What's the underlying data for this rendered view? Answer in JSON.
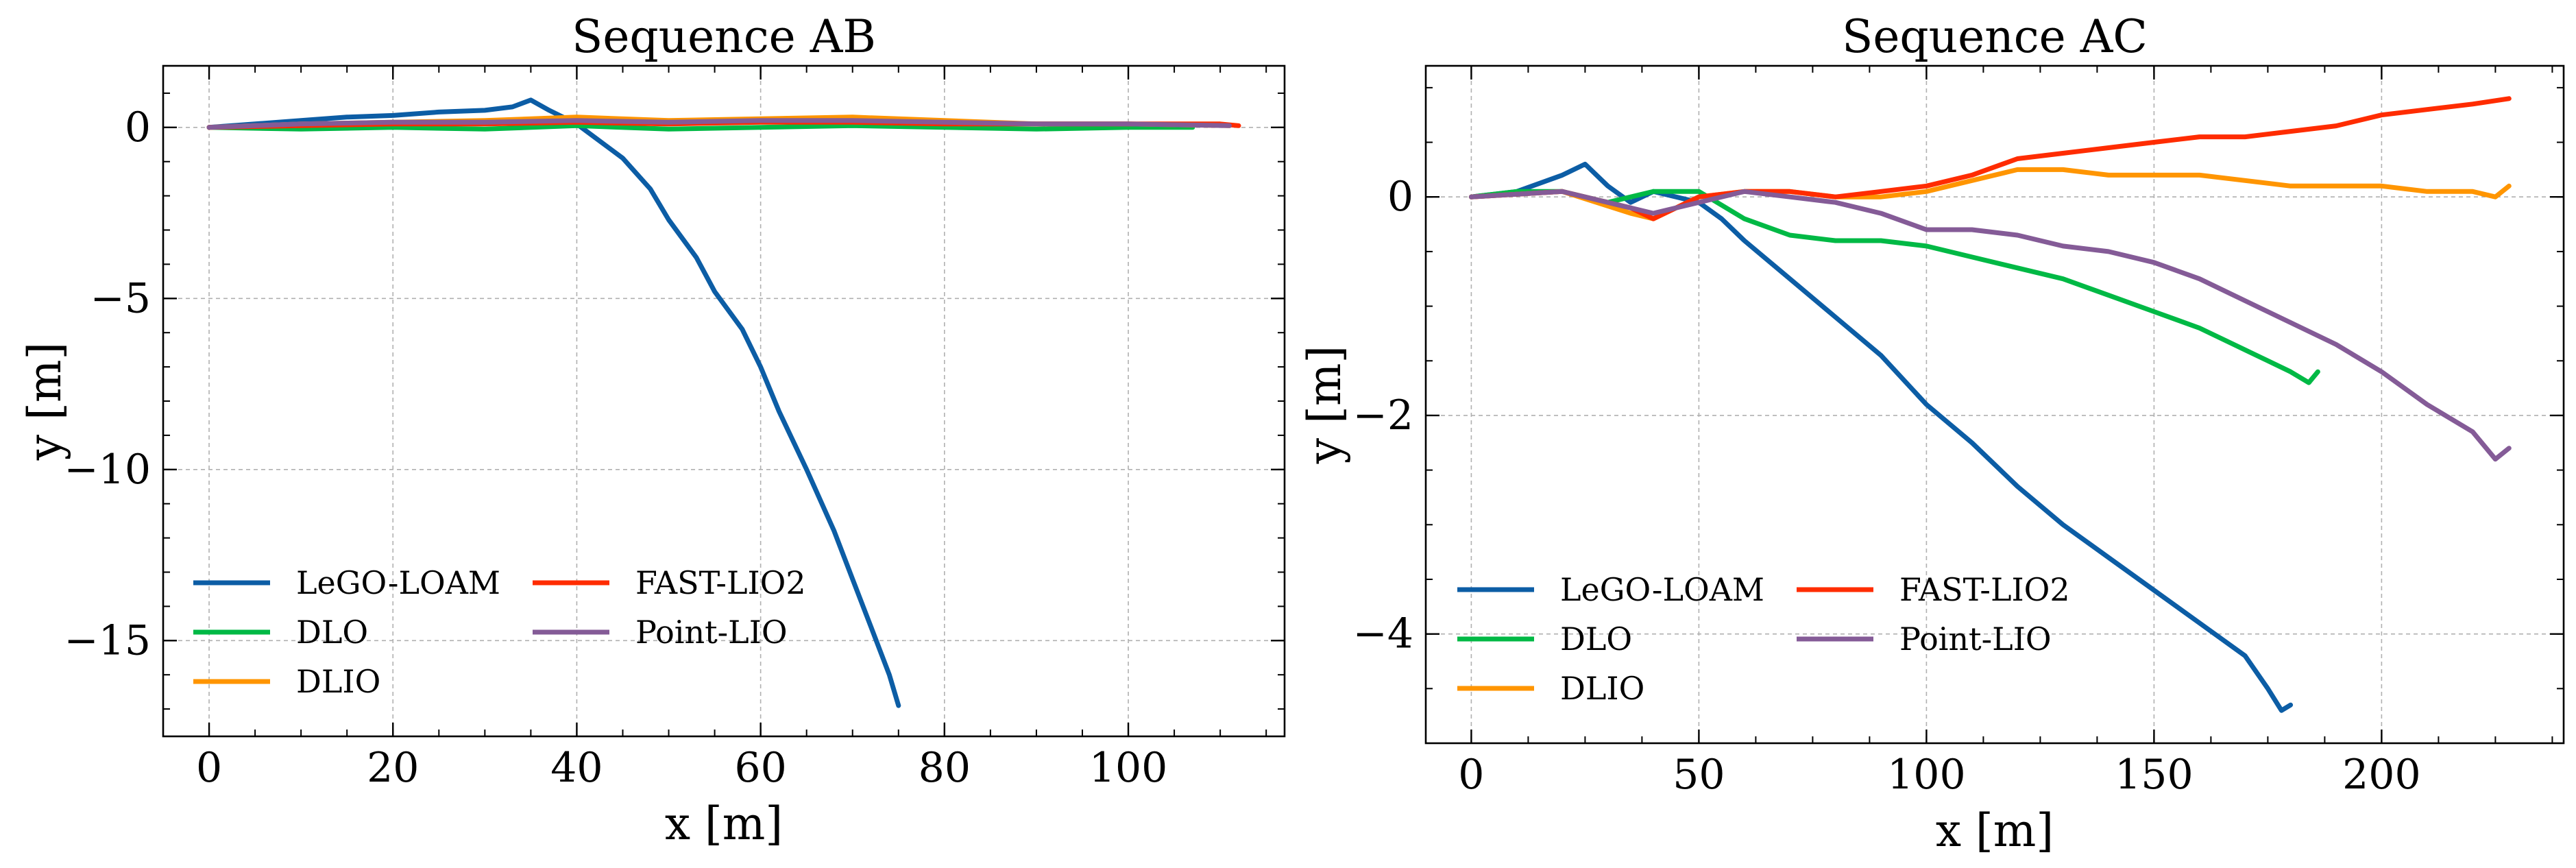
{
  "colors": {
    "LeGO-LOAM": "#0C5DA5",
    "DLO": "#00B945",
    "DLIO": "#FF9500",
    "FAST-LIO2": "#FF2C00",
    "Point-LIO": "#845B97"
  },
  "chart_data": [
    {
      "type": "line",
      "title": "Sequence AB",
      "xlabel": "x [m]",
      "ylabel": "y [m]",
      "xlim": [
        -5,
        117
      ],
      "ylim": [
        -17.8,
        1.8
      ],
      "xticks": [
        0,
        20,
        40,
        60,
        80,
        100
      ],
      "yticks": [
        0,
        -5,
        -10,
        -15
      ],
      "xtick_labels": [
        "0",
        "20",
        "40",
        "60",
        "80",
        "100"
      ],
      "ytick_labels": [
        "0",
        "−5",
        "−10",
        "−15"
      ],
      "grid": true,
      "legend": "lower-left",
      "series": [
        {
          "name": "LeGO-LOAM",
          "x": [
            0,
            5,
            10,
            15,
            20,
            25,
            30,
            33,
            35,
            37,
            40,
            42,
            45,
            48,
            50,
            53,
            55,
            58,
            60,
            62,
            65,
            68,
            70,
            72,
            74,
            75
          ],
          "y": [
            0,
            0.1,
            0.2,
            0.3,
            0.35,
            0.45,
            0.5,
            0.6,
            0.8,
            0.5,
            0.1,
            -0.3,
            -0.9,
            -1.8,
            -2.7,
            -3.8,
            -4.8,
            -5.9,
            -7.0,
            -8.3,
            -10.0,
            -11.8,
            -13.2,
            -14.6,
            -16.0,
            -16.9
          ]
        },
        {
          "name": "DLO",
          "x": [
            0,
            10,
            20,
            30,
            40,
            50,
            60,
            70,
            80,
            90,
            100,
            107
          ],
          "y": [
            0,
            -0.05,
            0,
            -0.05,
            0.05,
            -0.05,
            0,
            0.05,
            0,
            -0.05,
            0,
            0
          ]
        },
        {
          "name": "DLIO",
          "x": [
            0,
            10,
            20,
            30,
            40,
            50,
            60,
            70,
            80,
            90,
            100,
            111
          ],
          "y": [
            0,
            0.1,
            0.15,
            0.2,
            0.3,
            0.2,
            0.25,
            0.3,
            0.2,
            0.1,
            0.1,
            0.05
          ]
        },
        {
          "name": "FAST-LIO2",
          "x": [
            0,
            10,
            20,
            30,
            40,
            50,
            60,
            70,
            80,
            90,
            100,
            110,
            112
          ],
          "y": [
            0,
            0.05,
            0.1,
            0.1,
            0.15,
            0.1,
            0.15,
            0.15,
            0.1,
            0.1,
            0.1,
            0.1,
            0.05
          ]
        },
        {
          "name": "Point-LIO",
          "x": [
            0,
            10,
            20,
            30,
            40,
            50,
            60,
            70,
            80,
            90,
            100,
            111
          ],
          "y": [
            0,
            0.1,
            0.15,
            0.15,
            0.2,
            0.15,
            0.2,
            0.2,
            0.15,
            0.1,
            0.1,
            0.05
          ]
        }
      ]
    },
    {
      "type": "line",
      "title": "Sequence AC",
      "xlabel": "x [m]",
      "ylabel": "y [m]",
      "xlim": [
        -10,
        240
      ],
      "ylim": [
        -5,
        1.2
      ],
      "xticks": [
        0,
        50,
        100,
        150,
        200
      ],
      "yticks": [
        0,
        -2,
        -4
      ],
      "xtick_labels": [
        "0",
        "50",
        "100",
        "150",
        "200"
      ],
      "ytick_labels": [
        "0",
        "−2",
        "−4"
      ],
      "grid": true,
      "legend": "lower-left",
      "series": [
        {
          "name": "LeGO-LOAM",
          "x": [
            0,
            10,
            20,
            25,
            30,
            35,
            40,
            50,
            55,
            60,
            70,
            80,
            90,
            100,
            110,
            120,
            130,
            140,
            150,
            160,
            170,
            175,
            178,
            180
          ],
          "y": [
            0,
            0.05,
            0.2,
            0.3,
            0.1,
            -0.05,
            0.05,
            -0.05,
            -0.2,
            -0.4,
            -0.75,
            -1.1,
            -1.45,
            -1.9,
            -2.25,
            -2.65,
            -3.0,
            -3.3,
            -3.6,
            -3.9,
            -4.2,
            -4.5,
            -4.7,
            -4.65
          ]
        },
        {
          "name": "DLO",
          "x": [
            0,
            10,
            20,
            30,
            40,
            50,
            60,
            70,
            80,
            90,
            100,
            110,
            120,
            130,
            140,
            150,
            160,
            170,
            180,
            184,
            186
          ],
          "y": [
            0,
            0.05,
            0.05,
            -0.05,
            0.05,
            0.05,
            -0.2,
            -0.35,
            -0.4,
            -0.4,
            -0.45,
            -0.55,
            -0.65,
            -0.75,
            -0.9,
            -1.05,
            -1.2,
            -1.4,
            -1.6,
            -1.7,
            -1.6
          ]
        },
        {
          "name": "DLIO",
          "x": [
            0,
            20,
            35,
            40,
            50,
            60,
            70,
            80,
            90,
            100,
            110,
            120,
            130,
            140,
            150,
            160,
            170,
            180,
            190,
            200,
            210,
            220,
            225,
            228
          ],
          "y": [
            0,
            0.05,
            -0.15,
            -0.2,
            0,
            0.05,
            0.05,
            0,
            0,
            0.05,
            0.15,
            0.25,
            0.25,
            0.2,
            0.2,
            0.2,
            0.15,
            0.1,
            0.1,
            0.1,
            0.05,
            0.05,
            0.0,
            0.1
          ]
        },
        {
          "name": "FAST-LIO2",
          "x": [
            0,
            20,
            35,
            40,
            50,
            60,
            70,
            80,
            90,
            100,
            110,
            120,
            130,
            140,
            150,
            160,
            170,
            180,
            190,
            200,
            210,
            220,
            228
          ],
          "y": [
            0,
            0.05,
            -0.1,
            -0.2,
            0,
            0.05,
            0.05,
            0,
            0.05,
            0.1,
            0.2,
            0.35,
            0.4,
            0.45,
            0.5,
            0.55,
            0.55,
            0.6,
            0.65,
            0.75,
            0.8,
            0.85,
            0.9
          ]
        },
        {
          "name": "Point-LIO",
          "x": [
            0,
            20,
            35,
            40,
            50,
            60,
            70,
            80,
            90,
            100,
            110,
            120,
            130,
            140,
            150,
            160,
            170,
            180,
            190,
            200,
            210,
            220,
            225,
            228
          ],
          "y": [
            0,
            0.05,
            -0.1,
            -0.15,
            -0.05,
            0.05,
            0,
            -0.05,
            -0.15,
            -0.3,
            -0.3,
            -0.35,
            -0.45,
            -0.5,
            -0.6,
            -0.75,
            -0.95,
            -1.15,
            -1.35,
            -1.6,
            -1.9,
            -2.15,
            -2.4,
            -2.3
          ]
        }
      ]
    }
  ]
}
